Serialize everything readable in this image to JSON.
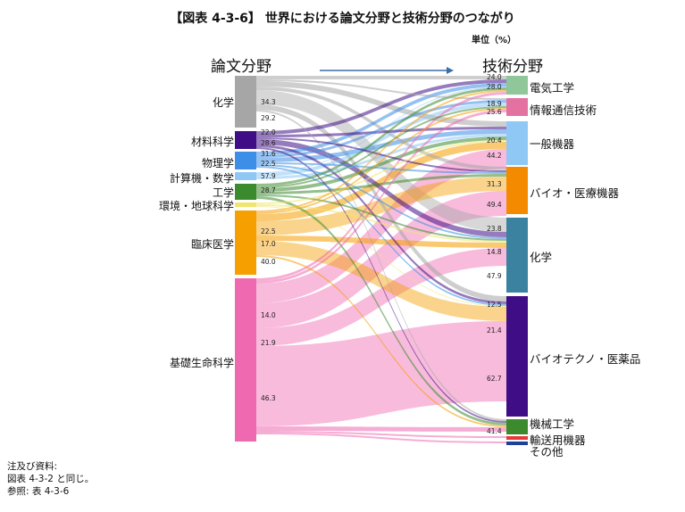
{
  "title": "【図表 4-3-6】 世界における論文分野と技術分野のつながり",
  "unit": "単位（%）",
  "left_header": "論文分野",
  "right_header": "技術分野",
  "left_nodes": [
    {
      "label": "化学",
      "color": "#a6a6a6"
    },
    {
      "label": "材料科学",
      "color": "#3f0e86"
    },
    {
      "label": "物理学",
      "color": "#3d8ee6"
    },
    {
      "label": "計算機・数学",
      "color": "#8fc8f4"
    },
    {
      "label": "工学",
      "color": "#3c8a2e"
    },
    {
      "label": "環境・地球科学",
      "color": "#f1e66b"
    },
    {
      "label": "臨床医学",
      "color": "#f59f00"
    },
    {
      "label": "基礎生命科学",
      "color": "#ef69b1"
    }
  ],
  "right_nodes": [
    {
      "label": "電気工学",
      "color": "#8fc79a"
    },
    {
      "label": "情報通信技術",
      "color": "#e472a1"
    },
    {
      "label": "一般機器",
      "color": "#8fc8f4"
    },
    {
      "label": "バイオ・医療機器",
      "color": "#f48a00"
    },
    {
      "label": "化学",
      "color": "#3a82a0"
    },
    {
      "label": "バイオテクノ・医薬品",
      "color": "#3f0e86"
    },
    {
      "label": "機械工学",
      "color": "#3c8a2e"
    },
    {
      "label": "輸送用機器",
      "color": "#e63a3a"
    },
    {
      "label": "その他",
      "color": "#1f3f9a"
    }
  ],
  "left_values": [
    {
      "node": "化学",
      "values": [
        "34.3",
        "29.2"
      ]
    },
    {
      "node": "材料科学",
      "values": [
        "22.0",
        "28.6"
      ]
    },
    {
      "node": "物理学",
      "values": [
        "31.6",
        "22.5"
      ]
    },
    {
      "node": "計算機・数学",
      "values": [
        "57.9"
      ]
    },
    {
      "node": "工学",
      "values": [
        "28.7"
      ]
    },
    {
      "node": "臨床医学",
      "values": [
        "22.5",
        "17.0",
        "40.0"
      ]
    },
    {
      "node": "基礎生命科学",
      "values": [
        "14.0",
        "21.9",
        "46.3"
      ]
    }
  ],
  "right_values": [
    {
      "node": "電気工学",
      "values": [
        "24.0",
        "28.0"
      ]
    },
    {
      "node": "情報通信技術",
      "values": [
        "18.9",
        "25.6"
      ]
    },
    {
      "node": "一般機器",
      "values": [
        "20.4",
        "44.2"
      ]
    },
    {
      "node": "バイオ・医療機器",
      "values": [
        "31.3",
        "49.4"
      ]
    },
    {
      "node": "化学",
      "values": [
        "23.8",
        "14.8",
        "47.9"
      ]
    },
    {
      "node": "バイオテクノ・医薬品",
      "values": [
        "12.5",
        "21.4",
        "62.7"
      ]
    },
    {
      "node": "機械工学",
      "values": [
        "41.4"
      ]
    }
  ],
  "notes": "注及び資料:\n図表 4-3-2 と同じ。\n参照: 表 4-3-6"
}
